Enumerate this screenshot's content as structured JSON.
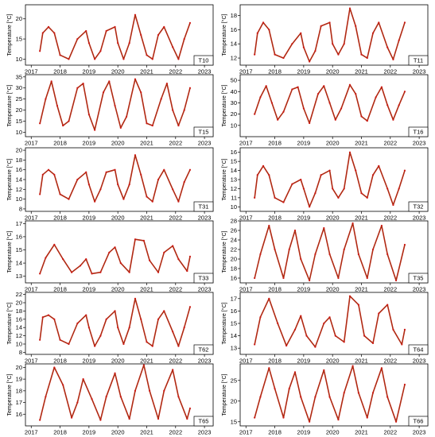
{
  "chart_data": [
    {
      "type": "line",
      "id": "T10",
      "series_name": "T10",
      "ylabel": "Temperature [°C]",
      "ylim": [
        8.5,
        23.5
      ],
      "yticks": [
        10,
        15,
        20
      ],
      "x": [
        2017.3,
        2017.4,
        2017.6,
        2017.8,
        2018.0,
        2018.3,
        2018.6,
        2018.9,
        2019.0,
        2019.2,
        2019.4,
        2019.6,
        2019.9,
        2020.0,
        2020.2,
        2020.4,
        2020.6,
        2020.8,
        2021.0,
        2021.2,
        2021.4,
        2021.6,
        2021.9,
        2022.1,
        2022.3,
        2022.5
      ],
      "y": [
        12,
        16.5,
        18,
        16.5,
        11,
        10,
        15,
        17,
        14,
        10,
        12,
        17,
        18,
        14,
        10,
        14,
        21,
        16,
        11,
        10,
        16,
        18,
        13,
        10,
        15,
        19
      ]
    },
    {
      "type": "line",
      "id": "T11",
      "series_name": "T11",
      "ylabel": "Temperature [°C]",
      "ylim": [
        11,
        19.5
      ],
      "yticks": [
        12,
        14,
        16,
        18
      ],
      "x": [
        2017.3,
        2017.4,
        2017.6,
        2017.8,
        2018.0,
        2018.3,
        2018.6,
        2018.9,
        2019.0,
        2019.2,
        2019.4,
        2019.6,
        2019.9,
        2020.0,
        2020.2,
        2020.4,
        2020.6,
        2020.8,
        2021.0,
        2021.2,
        2021.4,
        2021.6,
        2021.9,
        2022.1,
        2022.3,
        2022.5
      ],
      "y": [
        12.5,
        15.5,
        17,
        16,
        12.5,
        12,
        14,
        15.5,
        13.5,
        11.5,
        13,
        16.5,
        17,
        14,
        12.5,
        14,
        19,
        16.5,
        12.5,
        12,
        15.5,
        17,
        13.5,
        11.8,
        14.5,
        17
      ]
    },
    {
      "type": "line",
      "id": "T15",
      "series_name": "T15",
      "ylabel": "Temperature [°C]",
      "ylim": [
        8,
        36
      ],
      "yticks": [
        10,
        15,
        20,
        25,
        30,
        35
      ],
      "x": [
        2017.3,
        2017.5,
        2017.7,
        2017.9,
        2018.1,
        2018.3,
        2018.6,
        2018.8,
        2019.0,
        2019.2,
        2019.5,
        2019.7,
        2019.9,
        2020.1,
        2020.3,
        2020.6,
        2020.8,
        2021.0,
        2021.2,
        2021.5,
        2021.7,
        2021.9,
        2022.1,
        2022.3,
        2022.5
      ],
      "y": [
        14,
        25,
        33,
        22,
        13,
        15,
        30,
        32,
        18,
        11,
        28,
        33,
        22,
        12,
        17,
        34,
        28,
        14,
        13,
        25,
        32,
        20,
        13,
        20,
        30
      ]
    },
    {
      "type": "line",
      "id": "T16",
      "series_name": "T16",
      "ylabel": "Temperature [°C]",
      "ylim": [
        0,
        55
      ],
      "yticks": [
        10,
        20,
        30,
        40,
        50
      ],
      "x": [
        2017.3,
        2017.5,
        2017.7,
        2017.9,
        2018.1,
        2018.3,
        2018.6,
        2018.8,
        2019.0,
        2019.2,
        2019.5,
        2019.7,
        2019.9,
        2020.1,
        2020.3,
        2020.6,
        2020.8,
        2021.0,
        2021.2,
        2021.5,
        2021.7,
        2021.9,
        2022.1,
        2022.3,
        2022.5
      ],
      "y": [
        20,
        35,
        45,
        30,
        15,
        22,
        42,
        44,
        25,
        12,
        38,
        45,
        30,
        15,
        25,
        46,
        38,
        18,
        14,
        35,
        44,
        28,
        15,
        28,
        40
      ]
    },
    {
      "type": "line",
      "id": "T31",
      "series_name": "T31",
      "ylabel": "Temperature [°C]",
      "ylim": [
        7.5,
        20.5
      ],
      "yticks": [
        8,
        10,
        12,
        14,
        16,
        18,
        20
      ],
      "x": [
        2017.3,
        2017.4,
        2017.6,
        2017.8,
        2018.0,
        2018.3,
        2018.6,
        2018.9,
        2019.0,
        2019.2,
        2019.4,
        2019.6,
        2019.9,
        2020.0,
        2020.2,
        2020.4,
        2020.6,
        2020.8,
        2021.0,
        2021.2,
        2021.4,
        2021.6,
        2021.9,
        2022.1,
        2022.3,
        2022.5
      ],
      "y": [
        11,
        15,
        16,
        15,
        11,
        10,
        14,
        15.5,
        13,
        9.5,
        12,
        15.5,
        16,
        13,
        10,
        13,
        19,
        15,
        10.5,
        9.5,
        14,
        16,
        12,
        9.5,
        13.5,
        16
      ]
    },
    {
      "type": "line",
      "id": "T32",
      "series_name": "T32",
      "ylabel": "Temperature [°C]",
      "ylim": [
        9.5,
        16.5
      ],
      "yticks": [
        10,
        11,
        12,
        13,
        14,
        15,
        16
      ],
      "x": [
        2017.3,
        2017.4,
        2017.6,
        2017.8,
        2018.0,
        2018.3,
        2018.6,
        2018.9,
        2019.0,
        2019.2,
        2019.4,
        2019.6,
        2019.9,
        2020.0,
        2020.2,
        2020.4,
        2020.6,
        2020.8,
        2021.0,
        2021.2,
        2021.4,
        2021.6,
        2021.9,
        2022.1,
        2022.3,
        2022.5
      ],
      "y": [
        11,
        13.5,
        14.5,
        13.5,
        11,
        10.5,
        12.5,
        13,
        12,
        10,
        11.5,
        13.5,
        14,
        12,
        11,
        12,
        16,
        14,
        11.5,
        11,
        13.5,
        14.5,
        12,
        10.2,
        12,
        14
      ]
    },
    {
      "type": "line",
      "id": "T33",
      "series_name": "T33",
      "ylabel": "Temperature [°C]",
      "ylim": [
        12.5,
        17.2
      ],
      "yticks": [
        13,
        14,
        15,
        16,
        17
      ],
      "x": [
        2017.3,
        2017.5,
        2017.8,
        2018.1,
        2018.4,
        2018.7,
        2018.9,
        2019.1,
        2019.4,
        2019.7,
        2019.9,
        2020.1,
        2020.4,
        2020.6,
        2020.9,
        2021.1,
        2021.4,
        2021.6,
        2021.9,
        2022.1,
        2022.4,
        2022.5
      ],
      "y": [
        13.2,
        14.4,
        15.4,
        14.3,
        13.3,
        13.8,
        14.3,
        13.2,
        13.3,
        14.8,
        15.2,
        14.0,
        13.3,
        15.8,
        15.7,
        14.2,
        13.3,
        14.8,
        15.3,
        14.3,
        13.4,
        14.5
      ]
    },
    {
      "type": "line",
      "id": "T35",
      "series_name": "T35",
      "ylabel": "Temperature [°C]",
      "ylim": [
        15,
        28
      ],
      "yticks": [
        16,
        18,
        20,
        22,
        24,
        26,
        28
      ],
      "x": [
        2017.3,
        2017.5,
        2017.8,
        2018.0,
        2018.3,
        2018.5,
        2018.7,
        2018.9,
        2019.2,
        2019.4,
        2019.7,
        2019.9,
        2020.2,
        2020.4,
        2020.7,
        2020.9,
        2021.2,
        2021.4,
        2021.7,
        2021.9,
        2022.2,
        2022.5
      ],
      "y": [
        16,
        21,
        27,
        22,
        16,
        22,
        26,
        20,
        15.5,
        21,
        26.5,
        21,
        16,
        22,
        27.5,
        21,
        16,
        22,
        27,
        21,
        15.5,
        23
      ]
    },
    {
      "type": "line",
      "id": "T62",
      "series_name": "T62",
      "ylabel": "Temperature [°C]",
      "ylim": [
        7.5,
        22.5
      ],
      "yticks": [
        8,
        10,
        12,
        14,
        16,
        18,
        20,
        22
      ],
      "x": [
        2017.3,
        2017.4,
        2017.6,
        2017.8,
        2018.0,
        2018.3,
        2018.6,
        2018.9,
        2019.0,
        2019.2,
        2019.4,
        2019.6,
        2019.9,
        2020.0,
        2020.2,
        2020.4,
        2020.6,
        2020.8,
        2021.0,
        2021.2,
        2021.4,
        2021.6,
        2021.9,
        2022.1,
        2022.3,
        2022.5
      ],
      "y": [
        11,
        16.5,
        17,
        16,
        11,
        10,
        15,
        17,
        14,
        9.5,
        12,
        16,
        18,
        14,
        10,
        14,
        21,
        16,
        10.5,
        9.5,
        16,
        18,
        13,
        9.5,
        14,
        19
      ]
    },
    {
      "type": "line",
      "id": "T64",
      "series_name": "T64",
      "ylabel": "Temperature [°C]",
      "ylim": [
        12.5,
        17.5
      ],
      "yticks": [
        13,
        14,
        15,
        16,
        17
      ],
      "x": [
        2017.3,
        2017.5,
        2017.8,
        2018.1,
        2018.4,
        2018.7,
        2018.9,
        2019.1,
        2019.4,
        2019.7,
        2019.9,
        2020.1,
        2020.4,
        2020.6,
        2020.9,
        2021.1,
        2021.4,
        2021.6,
        2021.9,
        2022.1,
        2022.4,
        2022.5
      ],
      "y": [
        13.3,
        15.5,
        17.0,
        15.0,
        13.2,
        14.5,
        15.6,
        14.0,
        13.1,
        15.0,
        15.5,
        14.0,
        13.5,
        17.2,
        16.5,
        14.0,
        13.4,
        15.8,
        16.5,
        14.5,
        13.3,
        14.5
      ]
    },
    {
      "type": "line",
      "id": "T65",
      "series_name": "T65",
      "ylabel": "Temperature [°C]",
      "ylim": [
        15,
        20.3
      ],
      "yticks": [
        16,
        17,
        18,
        19,
        20
      ],
      "x": [
        2017.3,
        2017.5,
        2017.8,
        2018.1,
        2018.4,
        2018.6,
        2018.8,
        2019.1,
        2019.4,
        2019.6,
        2019.9,
        2020.1,
        2020.4,
        2020.6,
        2020.9,
        2021.1,
        2021.4,
        2021.6,
        2021.9,
        2022.1,
        2022.4,
        2022.5
      ],
      "y": [
        15.5,
        17.5,
        20.0,
        18.5,
        15.7,
        17.0,
        19.0,
        17.3,
        15.5,
        17.5,
        19.5,
        17.5,
        15.6,
        18.0,
        20.2,
        18.0,
        15.6,
        18.0,
        19.8,
        17.5,
        15.6,
        16.5
      ]
    },
    {
      "type": "line",
      "id": "T66",
      "series_name": "T66",
      "ylabel": "Temperature [°C]",
      "ylim": [
        14,
        29
      ],
      "yticks": [
        15,
        20,
        25
      ],
      "x": [
        2017.3,
        2017.5,
        2017.8,
        2018.0,
        2018.3,
        2018.5,
        2018.7,
        2018.9,
        2019.2,
        2019.4,
        2019.7,
        2019.9,
        2020.2,
        2020.4,
        2020.7,
        2020.9,
        2021.2,
        2021.4,
        2021.7,
        2021.9,
        2022.2,
        2022.5
      ],
      "y": [
        16,
        21,
        28,
        23,
        16,
        23,
        27,
        21,
        15,
        21,
        27.5,
        21,
        15.5,
        22,
        28.5,
        22,
        16,
        22,
        28,
        21,
        15,
        24
      ]
    }
  ],
  "x_axis": {
    "xlim": [
      2016.8,
      2023.3
    ],
    "ticks": [
      2017,
      2018,
      2019,
      2020,
      2021,
      2022,
      2023
    ]
  },
  "colors": {
    "line": "#cc1a14",
    "line_dark": "#7a4a10",
    "gap_marker": "#f0c6f0",
    "axis": "#000000"
  }
}
